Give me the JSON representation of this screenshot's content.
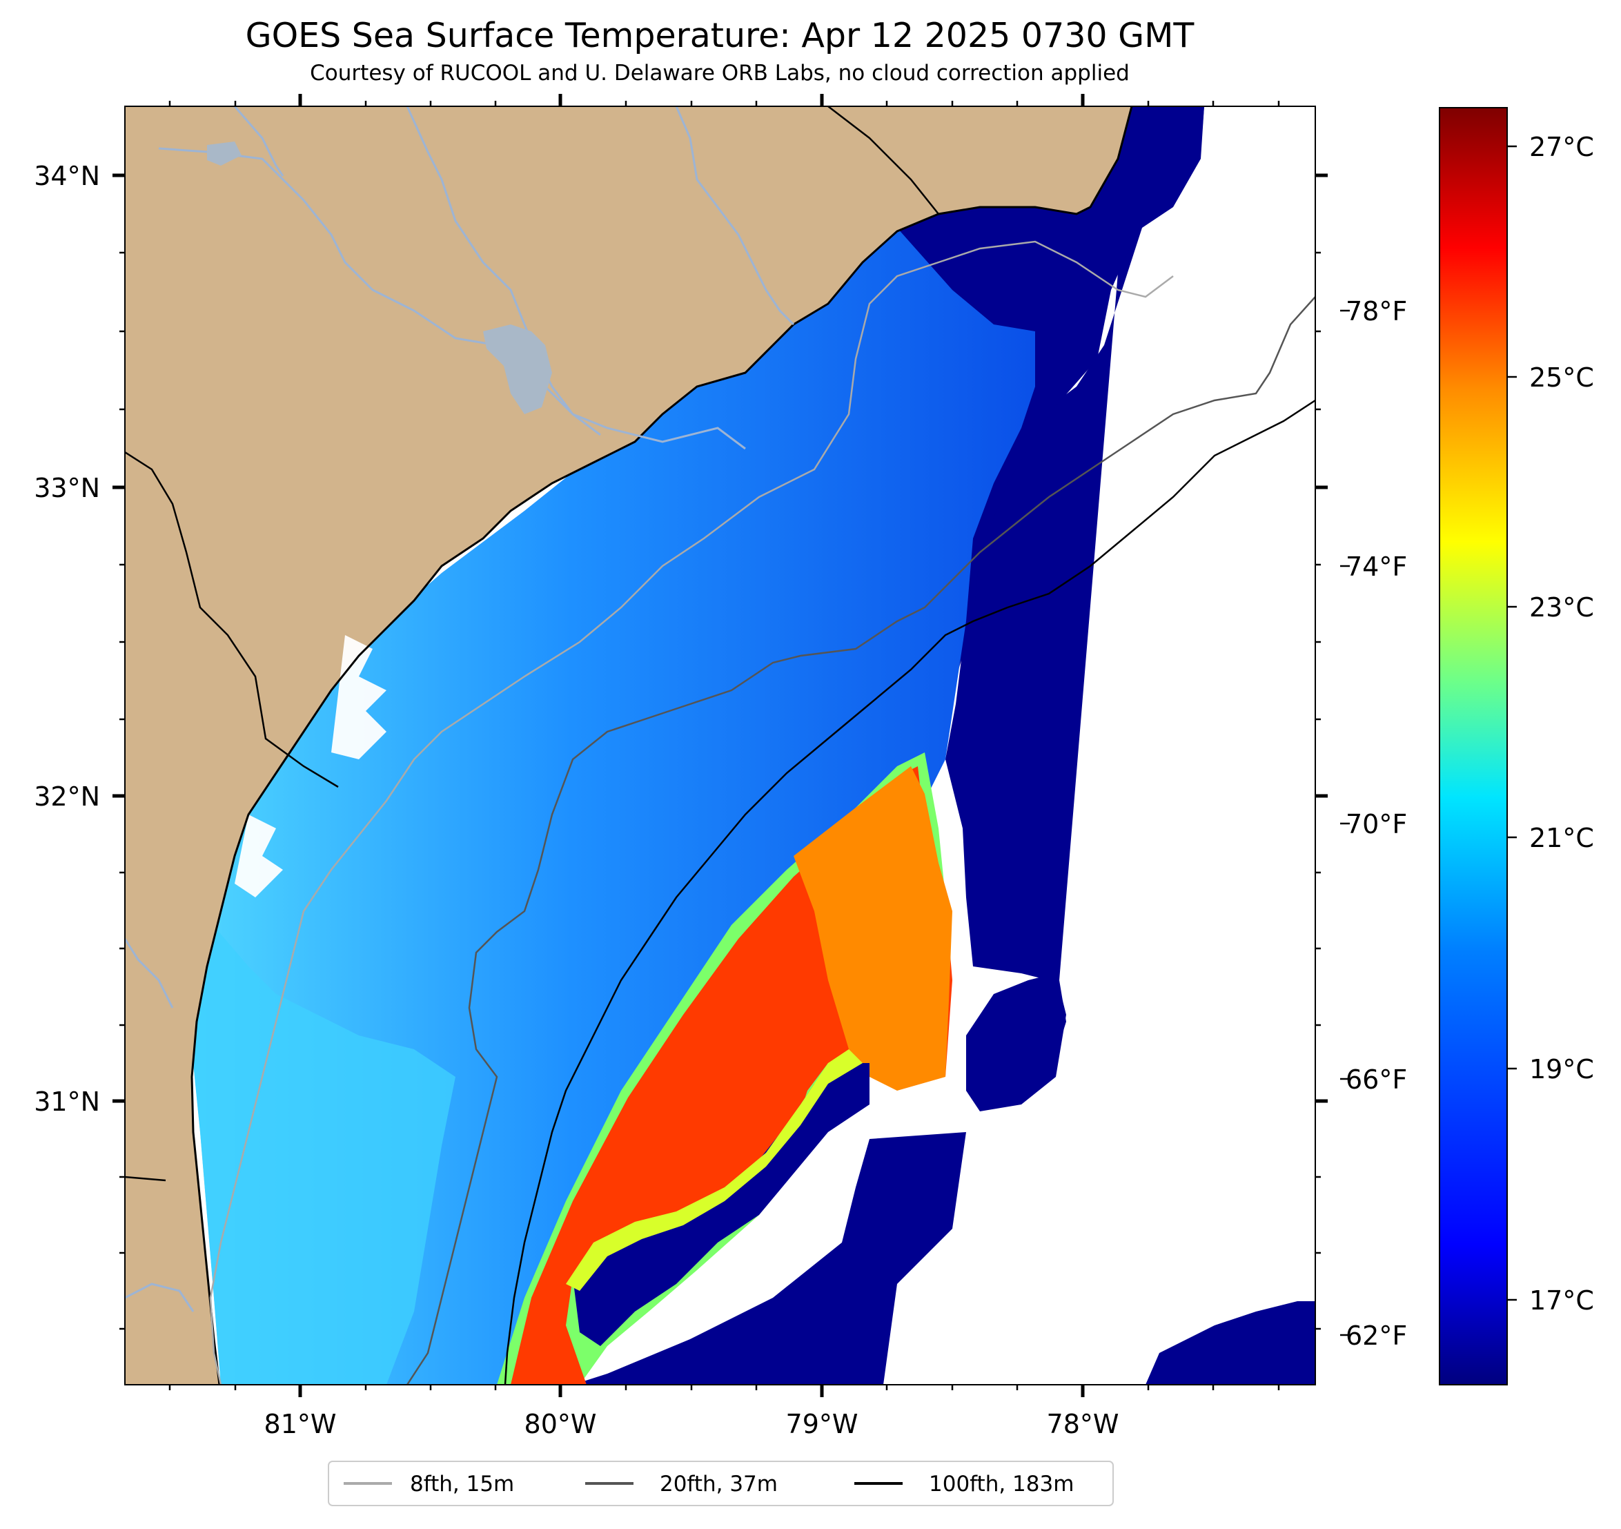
{
  "title": "GOES Sea Surface Temperature: Apr 12 2025 0730 GMT",
  "subtitle": "Courtesy of RUCOOL and U. Delaware ORB Labs, no cloud correction applied",
  "map": {
    "lat_ticks": [
      "34°N",
      "33°N",
      "32°N",
      "31°N"
    ],
    "lon_ticks": [
      "81°W",
      "80°W",
      "79°W",
      "78°W"
    ],
    "fahrenheit_ticks": [
      "78°F",
      "74°F",
      "70°F",
      "66°F",
      "62°F"
    ]
  },
  "colorbar": {
    "celsius_ticks": [
      "27°C",
      "25°C",
      "23°C",
      "21°C",
      "19°C",
      "17°C"
    ],
    "colors": [
      "#00007f",
      "#0000ff",
      "#007fff",
      "#00ffff",
      "#7fff7f",
      "#ffff00",
      "#ff7f00",
      "#ff0000",
      "#7f0000"
    ]
  },
  "legend": {
    "items": [
      {
        "label": "8fth, 15m",
        "color": "#aaaaaa"
      },
      {
        "label": "20fth, 37m",
        "color": "#555555"
      },
      {
        "label": "100fth, 183m",
        "color": "#000000"
      }
    ]
  },
  "colors": {
    "land": "#d2b48c",
    "river": "#9db4d4",
    "warm_core": "#ff3a00",
    "cold_water": "#00008f"
  }
}
